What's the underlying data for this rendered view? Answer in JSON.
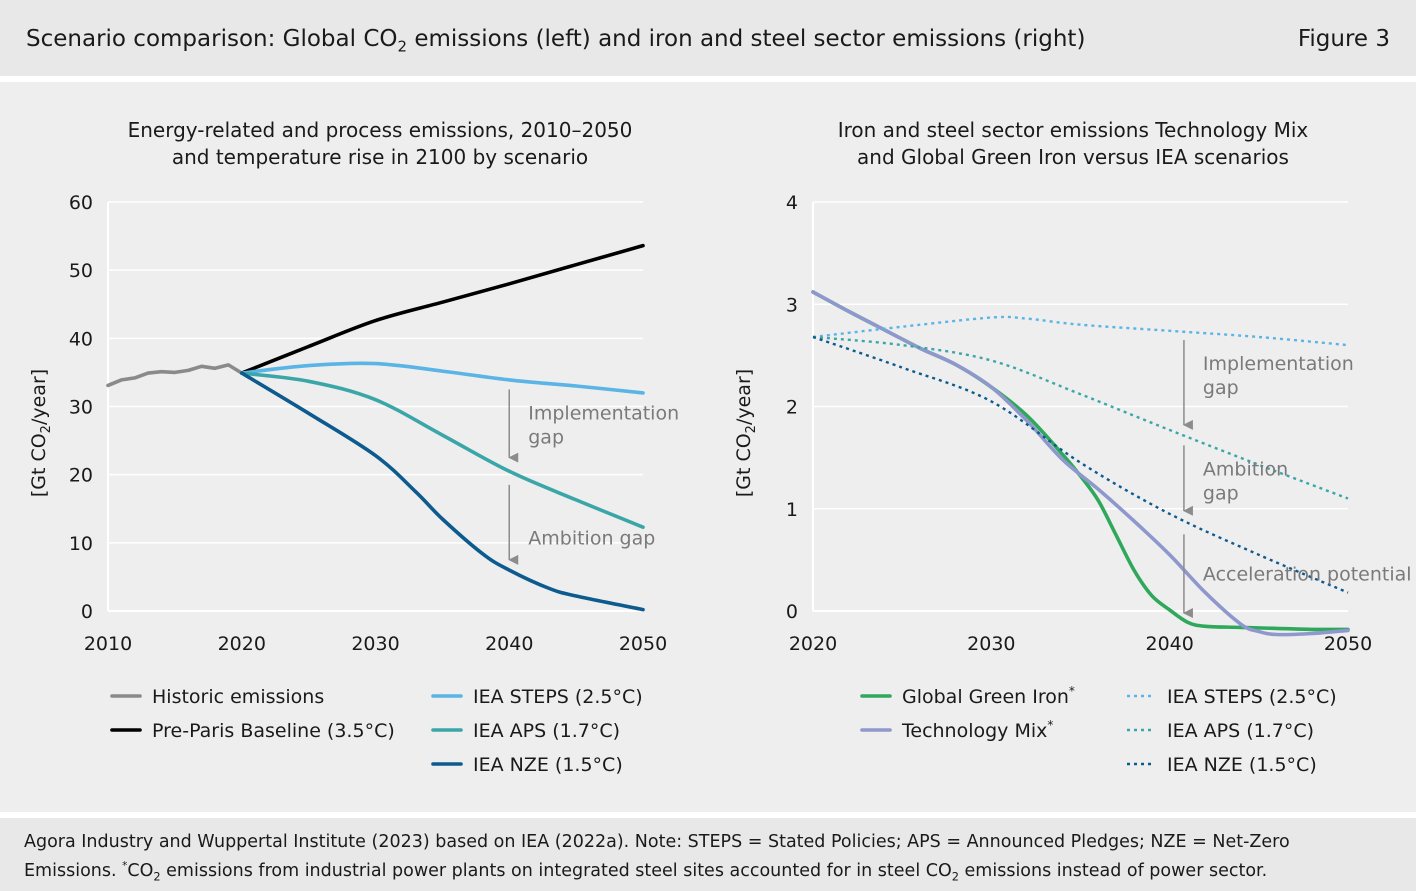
{
  "header": {
    "title_pre": "Scenario comparison: Global CO",
    "title_sub": "2",
    "title_post": " emissions (left) and iron and steel sector emissions (right)",
    "figure_label": "Figure 3"
  },
  "footer": {
    "line1": "Agora Industry and Wuppertal Institute (2023) based on IEA (2022a). Note: STEPS = Stated Policies; APS = Announced Pledges; NZE = Net-Zero",
    "line2_pre": "Emissions. ",
    "line2_star": "*",
    "line2_co": "CO",
    "line2_sub": "2",
    "line2_mid": " emissions from industrial power plants on integrated steel sites accounted for in steel CO",
    "line2_sub2": "2",
    "line2_post": " emissions instead of power sector."
  },
  "colors": {
    "historic": "#8a8a8a",
    "baseline": "#000000",
    "steps": "#5ab4e5",
    "aps": "#3aa6a8",
    "nze": "#0d5a8f",
    "green_iron": "#2fa85b",
    "tech_mix": "#8e98cc",
    "arrow": "#8c8c8c",
    "grid": "#ffffff"
  },
  "chart_data": [
    {
      "type": "line",
      "title": [
        "Energy-related and process emissions, 2010–2050",
        "and temperature rise in 2100 by scenario"
      ],
      "ylabel": "[Gt CO2/year]",
      "ylabel_pre": "[Gt CO",
      "ylabel_sub": "2",
      "ylabel_post": "/year]",
      "xlim": [
        2010,
        2050
      ],
      "ylim": [
        0,
        60
      ],
      "xticks": [
        2010,
        2020,
        2030,
        2040,
        2050
      ],
      "yticks": [
        0,
        10,
        20,
        30,
        40,
        50,
        60
      ],
      "grid": true,
      "series": [
        {
          "name": "Historic emissions",
          "key": "historic",
          "dash": "solid",
          "x": [
            2010,
            2011,
            2012,
            2013,
            2014,
            2015,
            2016,
            2017,
            2018,
            2019,
            2020
          ],
          "y": [
            33.1,
            33.9,
            34.2,
            34.9,
            35.1,
            35.0,
            35.3,
            35.9,
            35.6,
            36.1,
            34.9
          ]
        },
        {
          "name": "Pre-Paris Baseline (3.5°C)",
          "key": "baseline",
          "dash": "solid",
          "x": [
            2020,
            2025,
            2030,
            2035,
            2040,
            2045,
            2050
          ],
          "y": [
            34.9,
            38.8,
            42.6,
            45.3,
            48.0,
            50.8,
            53.6
          ]
        },
        {
          "name": "IEA STEPS (2.5°C)",
          "key": "steps",
          "dash": "solid",
          "x": [
            2020,
            2025,
            2030,
            2035,
            2040,
            2045,
            2050
          ],
          "y": [
            34.9,
            36.0,
            36.3,
            35.2,
            33.9,
            33.0,
            32.0
          ]
        },
        {
          "name": "IEA APS (1.7°C)",
          "key": "aps",
          "dash": "solid",
          "x": [
            2020,
            2025,
            2030,
            2035,
            2040,
            2045,
            2050
          ],
          "y": [
            34.9,
            33.7,
            31.0,
            25.8,
            20.5,
            16.3,
            12.3
          ]
        },
        {
          "name": "IEA NZE (1.5°C)",
          "key": "nze",
          "dash": "solid",
          "x": [
            2020,
            2025,
            2030,
            2033,
            2035,
            2038,
            2040,
            2043,
            2045,
            2050
          ],
          "y": [
            34.9,
            29.0,
            22.8,
            17.5,
            13.5,
            8.4,
            6.0,
            3.3,
            2.2,
            0.2
          ]
        }
      ],
      "annotations": [
        {
          "lines": [
            "Implementation",
            "gap"
          ],
          "arrow_x": 2040,
          "arrow_from": 32.5,
          "arrow_to": 22.5
        },
        {
          "lines": [
            "Ambition gap"
          ],
          "arrow_x": 2040,
          "arrow_from": 18.5,
          "arrow_to": 7.5
        }
      ],
      "legend": {
        "col1": [
          "Historic emissions",
          "Pre-Paris Baseline (3.5°C)"
        ],
        "col2": [
          "IEA STEPS (2.5°C)",
          "IEA APS (1.7°C)",
          "IEA NZE (1.5°C)"
        ]
      }
    },
    {
      "type": "line",
      "title": [
        "Iron and steel sector emissions Technology Mix",
        "and Global Green Iron versus IEA scenarios"
      ],
      "ylabel": "[Gt CO2/year]",
      "ylabel_pre": "[Gt CO",
      "ylabel_sub": "2",
      "ylabel_post": "/year]",
      "xlim": [
        2020,
        2050
      ],
      "ylim": [
        0,
        4
      ],
      "xticks": [
        2020,
        2030,
        2040,
        2050
      ],
      "yticks": [
        0,
        1,
        2,
        3,
        4
      ],
      "grid": true,
      "series": [
        {
          "name": "Global Green Iron",
          "star": "*",
          "key": "green_iron",
          "dash": "solid",
          "x": [
            2020,
            2022,
            2024,
            2026,
            2028,
            2030,
            2032,
            2034,
            2035,
            2036,
            2037,
            2038,
            2039,
            2040,
            2041,
            2042,
            2044,
            2046,
            2048,
            2050
          ],
          "y": [
            3.12,
            2.93,
            2.75,
            2.57,
            2.41,
            2.19,
            1.91,
            1.53,
            1.32,
            1.08,
            0.74,
            0.4,
            0.15,
            0.01,
            -0.11,
            -0.15,
            -0.16,
            -0.17,
            -0.18,
            -0.18
          ]
        },
        {
          "name": "Technology Mix",
          "star": "*",
          "key": "tech_mix",
          "dash": "solid",
          "x": [
            2020,
            2022,
            2024,
            2026,
            2028,
            2030,
            2032,
            2034,
            2036,
            2038,
            2040,
            2042,
            2044,
            2045,
            2046,
            2048,
            2050
          ],
          "y": [
            3.12,
            2.93,
            2.75,
            2.57,
            2.41,
            2.19,
            1.86,
            1.48,
            1.19,
            0.88,
            0.55,
            0.18,
            -0.13,
            -0.2,
            -0.23,
            -0.22,
            -0.19
          ]
        },
        {
          "name": "IEA STEPS (2.5°C)",
          "key": "steps",
          "dash": "dotted",
          "x": [
            2020,
            2025,
            2030,
            2032,
            2035,
            2040,
            2045,
            2050
          ],
          "y": [
            2.68,
            2.78,
            2.87,
            2.86,
            2.8,
            2.74,
            2.68,
            2.6
          ]
        },
        {
          "name": "IEA APS (1.7°C)",
          "key": "aps",
          "dash": "dotted",
          "x": [
            2020,
            2025,
            2030,
            2035,
            2040,
            2045,
            2050
          ],
          "y": [
            2.68,
            2.6,
            2.45,
            2.12,
            1.77,
            1.43,
            1.1
          ]
        },
        {
          "name": "IEA NZE (1.5°C)",
          "key": "nze",
          "dash": "dotted",
          "x": [
            2020,
            2025,
            2030,
            2035,
            2040,
            2045,
            2050
          ],
          "y": [
            2.68,
            2.38,
            2.05,
            1.45,
            0.95,
            0.55,
            0.18
          ]
        }
      ],
      "annotations": [
        {
          "lines": [
            "Implementation",
            "gap"
          ],
          "arrow_x": 2040.8,
          "arrow_from": 2.65,
          "arrow_to": 1.82
        },
        {
          "lines": [
            "Ambition",
            "gap"
          ],
          "arrow_x": 2040.8,
          "arrow_from": 1.62,
          "arrow_to": 0.98
        },
        {
          "lines": [
            "Acceleration potential"
          ],
          "arrow_x": 2040.8,
          "arrow_from": 0.75,
          "arrow_to": -0.02
        }
      ],
      "legend": {
        "col1": [
          "Global Green Iron",
          "Technology Mix"
        ],
        "col2": [
          "IEA STEPS (2.5°C)",
          "IEA APS (1.7°C)",
          "IEA NZE (1.5°C)"
        ]
      }
    }
  ]
}
